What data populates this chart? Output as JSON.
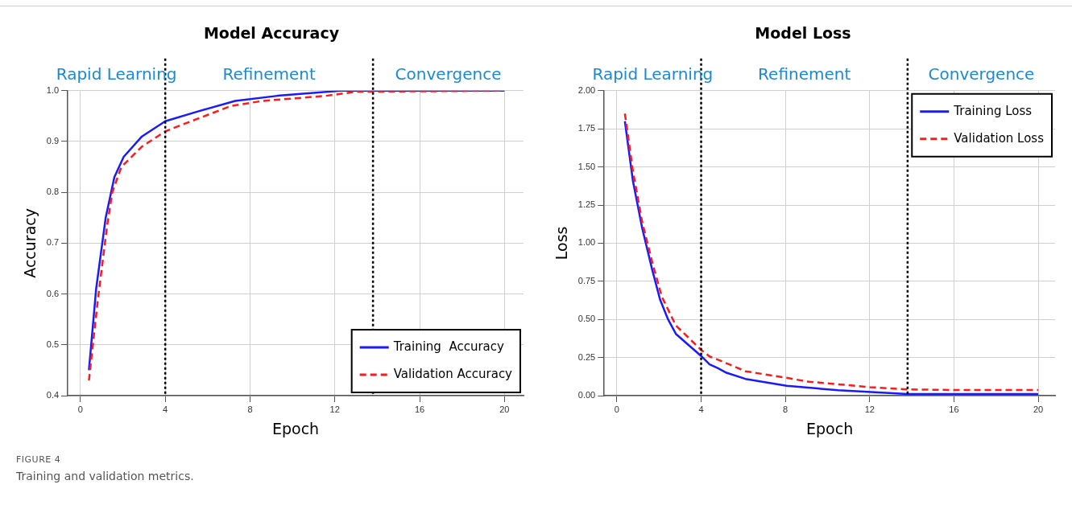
{
  "chart_data": [
    {
      "type": "line",
      "title": "Model Accuracy",
      "xlabel": "Epoch",
      "ylabel": "Accuracy",
      "annotations": [
        "Rapid Learning",
        "Refinement",
        "Convergence",
        "FIGURE 4",
        "Training and validation metrics."
      ],
      "xlim": [
        -0.6,
        20.9
      ],
      "xticks": [
        0,
        4,
        8,
        12,
        16,
        20
      ],
      "ylim": [
        0.4,
        1.0
      ],
      "yticks": [
        {
          "value": 0.4,
          "label": "0.4"
        },
        {
          "value": 0.5,
          "label": "0.5"
        },
        {
          "value": 0.6,
          "label": "0.6"
        },
        {
          "value": 0.7,
          "label": "0.7"
        },
        {
          "value": 0.8,
          "label": "0.8"
        },
        {
          "value": 0.9,
          "label": "0.9"
        },
        {
          "value": 1.0,
          "label": "1.0"
        }
      ],
      "grid": true,
      "legend": "bottom right",
      "marker": "none",
      "ref_lines": [
        {
          "axis": "x",
          "value": 4,
          "color": "#000000",
          "line_style": "dotted"
        },
        {
          "axis": "x",
          "value": 13.8,
          "color": "#000000",
          "line_style": "dotted"
        }
      ],
      "series": [
        {
          "name": "Training  Accuracy",
          "color": "#1a1aff",
          "line_style": "solid",
          "x": [
            0.4,
            0.74,
            1.19,
            1.6,
            2.04,
            2.9,
            4,
            5.6,
            7.3,
            9.3,
            12.3,
            20
          ],
          "values": [
            0.45,
            0.61,
            0.75,
            0.83,
            0.87,
            0.91,
            0.94,
            0.96,
            0.98,
            0.99,
            1.0,
            1.0
          ]
        },
        {
          "name": "Validation Accuracy",
          "color": "#ff1a1a",
          "line_style": "dashed",
          "x": [
            0.4,
            0.81,
            1.26,
            1.5,
            1.93,
            2.9,
            4,
            4.6,
            7.1,
            8.6,
            11.6,
            13,
            20
          ],
          "values": [
            0.43,
            0.585,
            0.735,
            0.8,
            0.85,
            0.89,
            0.92,
            0.93,
            0.97,
            0.98,
            0.99,
            0.998,
            1.0
          ]
        }
      ]
    },
    {
      "type": "line",
      "title": "Model Loss",
      "xlabel": "Epoch",
      "ylabel": "Loss",
      "annotations": [
        "Rapid Learning",
        "Refinement",
        "Convergence"
      ],
      "xlim": [
        -0.6,
        20.8
      ],
      "xticks": [
        0,
        4,
        8,
        12,
        16,
        20
      ],
      "ylim": [
        0,
        2
      ],
      "yticks": [
        {
          "value": 0,
          "label": "0.00"
        },
        {
          "value": 0.25,
          "label": "0.25"
        },
        {
          "value": 0.5,
          "label": "0.50"
        },
        {
          "value": 0.75,
          "label": "0.75"
        },
        {
          "value": 1.0,
          "label": "1.00"
        },
        {
          "value": 1.25,
          "label": "1.25"
        },
        {
          "value": 1.5,
          "label": "1.50"
        },
        {
          "value": 1.75,
          "label": "1.75"
        },
        {
          "value": 2.0,
          "label": "2.00"
        }
      ],
      "grid": true,
      "legend": "top right",
      "marker": "none",
      "ref_lines": [
        {
          "axis": "x",
          "value": 4,
          "color": "#000000",
          "line_style": "dotted"
        },
        {
          "axis": "x",
          "value": 13.8,
          "color": "#000000",
          "line_style": "dotted"
        }
      ],
      "series": [
        {
          "name": "Training Loss",
          "color": "#1a1aff",
          "line_style": "solid",
          "x": [
            0.38,
            0.76,
            1.2,
            1.67,
            2.05,
            2.43,
            2.8,
            4,
            4.4,
            4.8,
            5.2,
            6.1,
            8.06,
            10.5,
            13.8,
            20
          ],
          "values": [
            1.8,
            1.41,
            1.1,
            0.83,
            0.63,
            0.5,
            0.405,
            0.26,
            0.205,
            0.18,
            0.15,
            0.11,
            0.065,
            0.035,
            0.01,
            0.01
          ]
        },
        {
          "name": "Validation Loss",
          "color": "#ff1a1a",
          "line_style": "dashed",
          "x": [
            0.38,
            0.76,
            1.2,
            1.67,
            2.13,
            2.8,
            4,
            4.4,
            4.9,
            6.1,
            8.06,
            9,
            12,
            13.8,
            15.8,
            20
          ],
          "values": [
            1.85,
            1.475,
            1.14,
            0.88,
            0.65,
            0.46,
            0.3,
            0.257,
            0.23,
            0.16,
            0.117,
            0.093,
            0.056,
            0.041,
            0.037,
            0.037
          ]
        }
      ]
    }
  ]
}
